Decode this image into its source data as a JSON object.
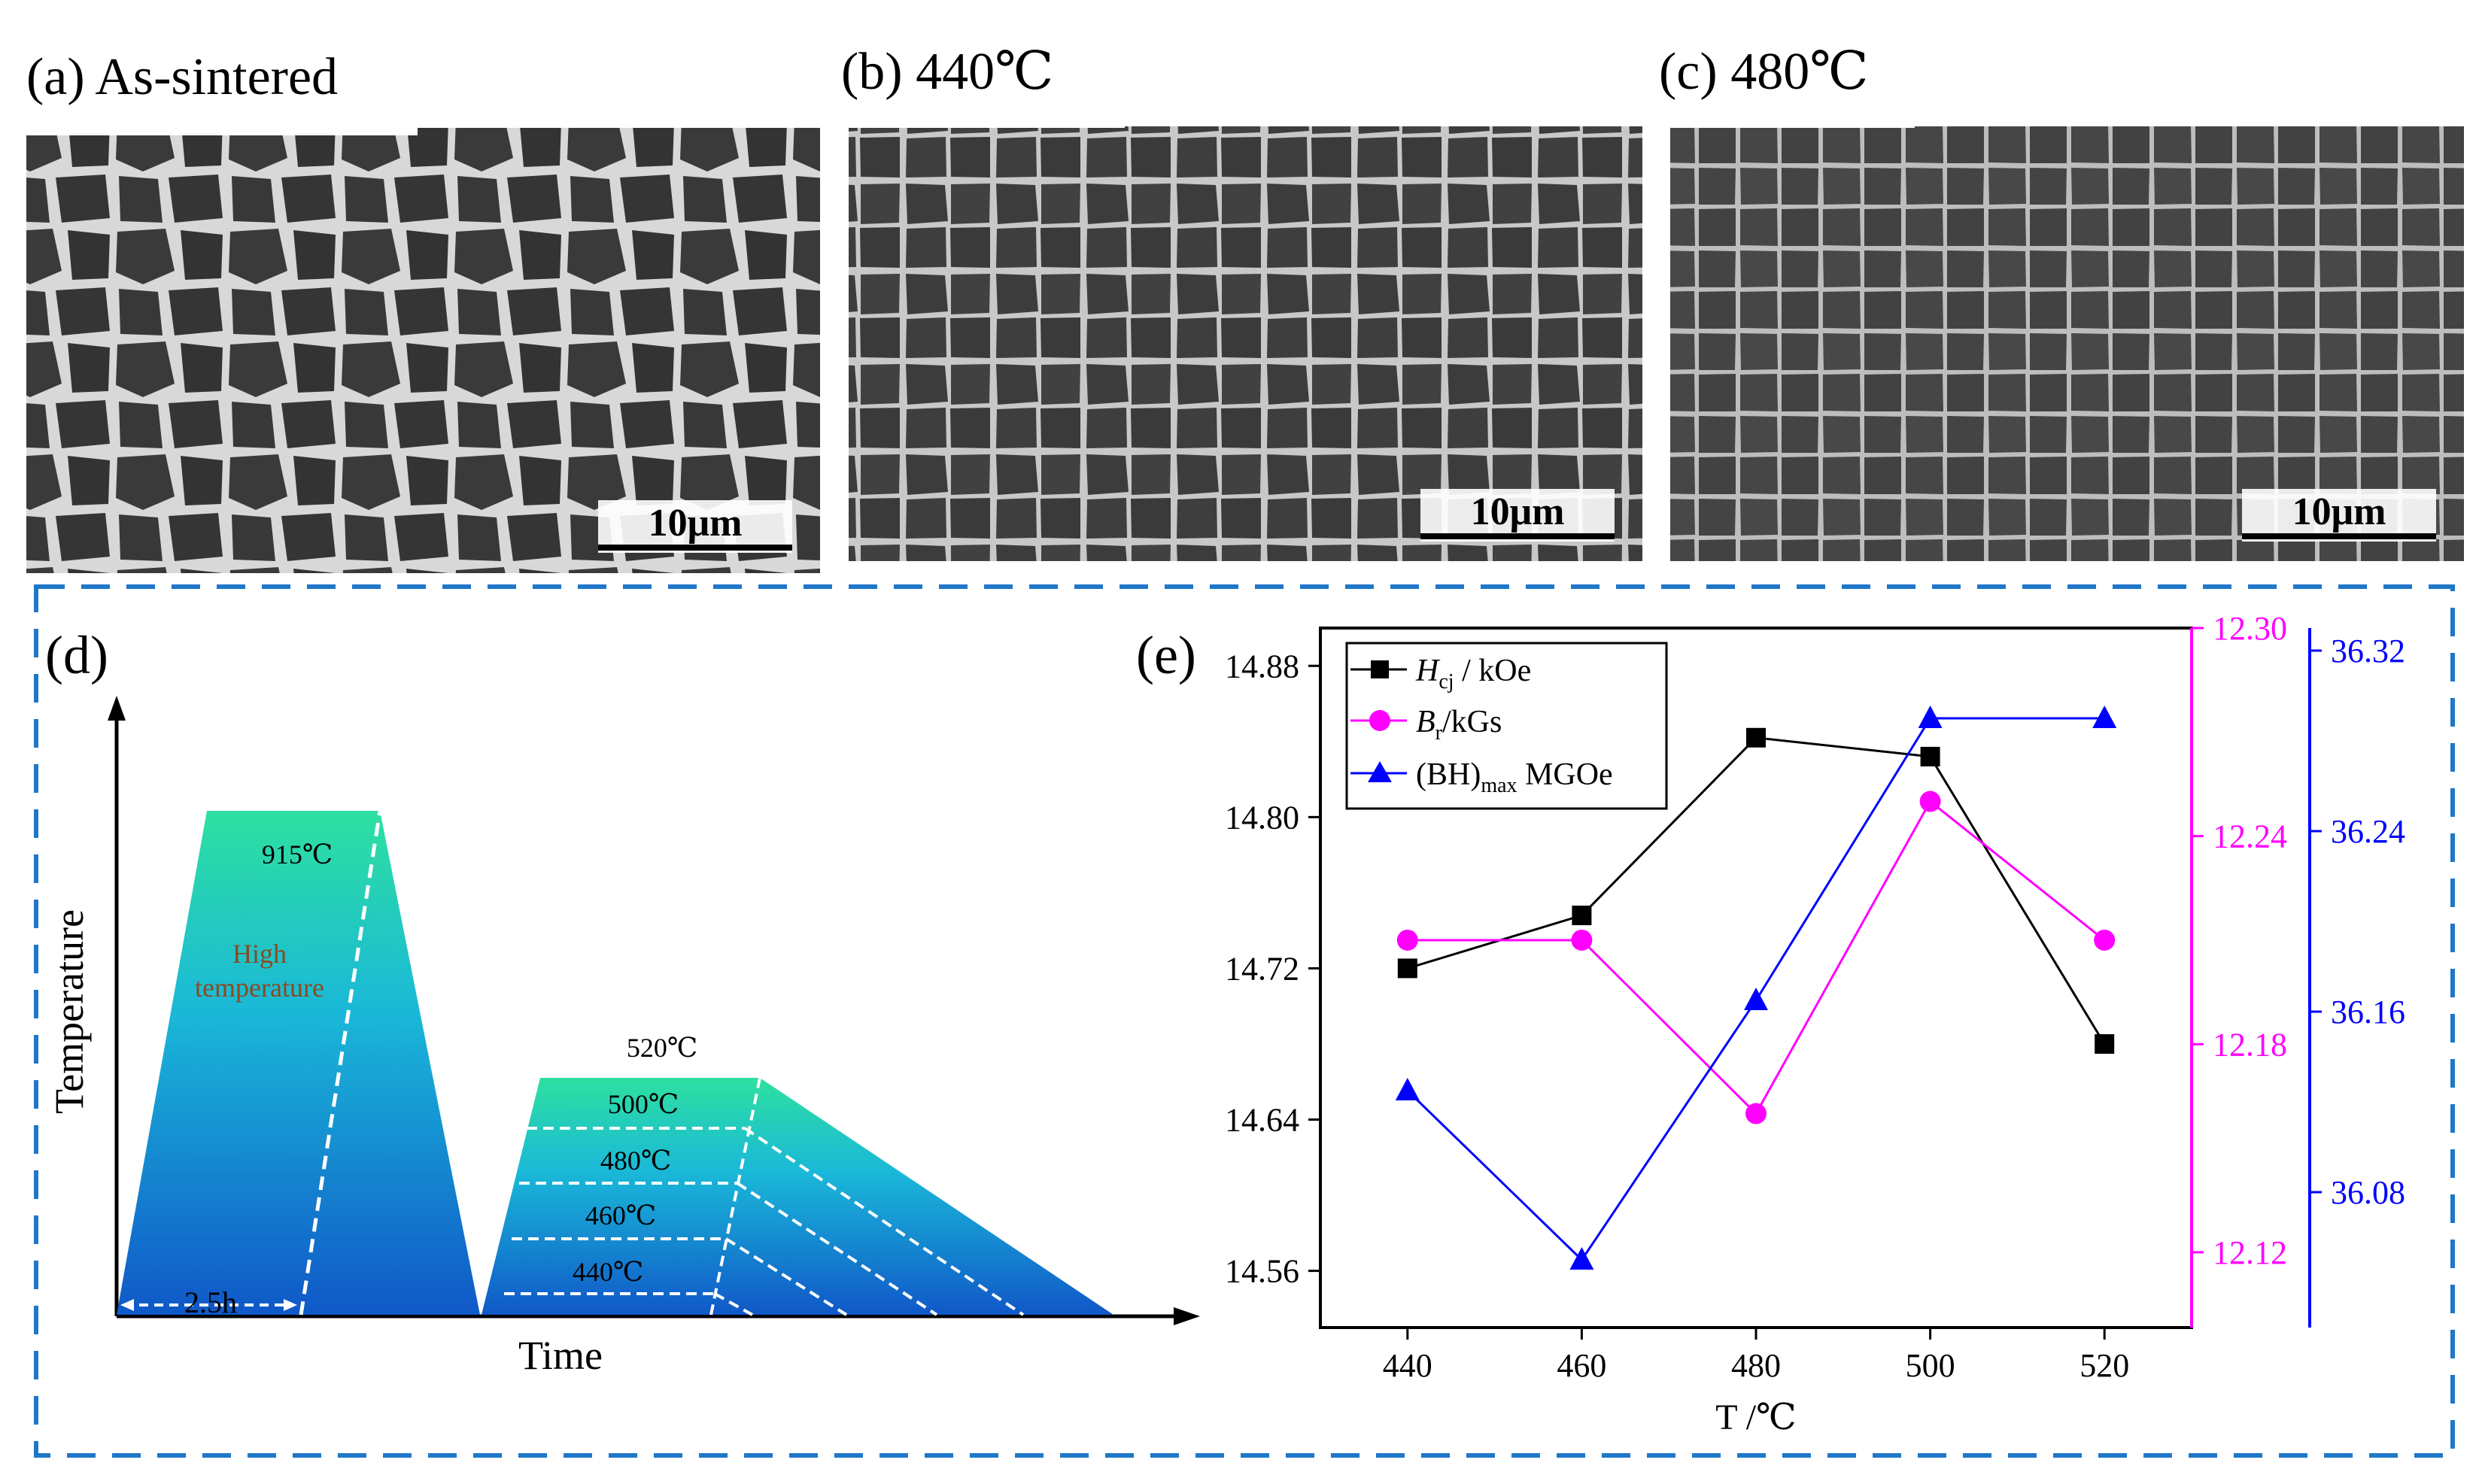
{
  "panels": {
    "a": {
      "label": "(a) As-sintered",
      "scale": "10μm"
    },
    "b": {
      "label": "(b) 440℃",
      "scale": "10μm"
    },
    "c": {
      "label": "(c) 480℃",
      "scale": "10μm"
    }
  },
  "schematic": {
    "label": "(d)",
    "ylabel": "Temperature",
    "xlabel": "Time",
    "sinter_temp": "915℃",
    "high_temp": [
      "High",
      "temperature"
    ],
    "duration": "2.5h",
    "aging_temps": [
      "520℃",
      "500℃",
      "480℃",
      "460℃",
      "440℃"
    ]
  },
  "colors": {
    "hcj": "#000000",
    "br": "#ff00ff",
    "bh": "#0000ff",
    "frame": "#1f77c9",
    "grad_top": "#2ee0a0",
    "grad_bottom": "#1060d0"
  },
  "chart_data": {
    "type": "line",
    "label": "(e)",
    "xlabel": "T /℃",
    "x": [
      440,
      460,
      480,
      500,
      520
    ],
    "xlim": [
      430,
      530
    ],
    "xticks": [
      "440",
      "460",
      "480",
      "500",
      "520"
    ],
    "series": [
      {
        "key": "hcj",
        "name_main": "H",
        "name_sub": "cj",
        "name_rest": " / kOe",
        "marker": "square",
        "axis": "left",
        "values": [
          14.72,
          14.748,
          14.842,
          14.832,
          14.68
        ],
        "ylim": [
          14.53,
          14.9
        ],
        "ticks": [
          "14.56",
          "14.64",
          "14.72",
          "14.80",
          "14.88"
        ]
      },
      {
        "key": "br",
        "name_main": "B",
        "name_sub": "r",
        "name_rest": "/kGs",
        "marker": "circle",
        "axis": "right1",
        "values": [
          12.21,
          12.21,
          12.16,
          12.25,
          12.21
        ],
        "ylim": [
          12.0983,
          12.3
        ],
        "ticks": [
          "12.12",
          "12.18",
          "12.24",
          "12.30"
        ]
      },
      {
        "key": "bh",
        "name_main": "(BH)",
        "name_sub": "max",
        "name_rest": " MGOe",
        "marker": "triangle",
        "axis": "right2",
        "values": [
          36.125,
          36.05,
          36.165,
          36.29,
          36.29
        ],
        "ylim": [
          36.02,
          36.33
        ],
        "ticks": [
          "36.08",
          "36.16",
          "36.24",
          "36.32"
        ]
      }
    ]
  }
}
